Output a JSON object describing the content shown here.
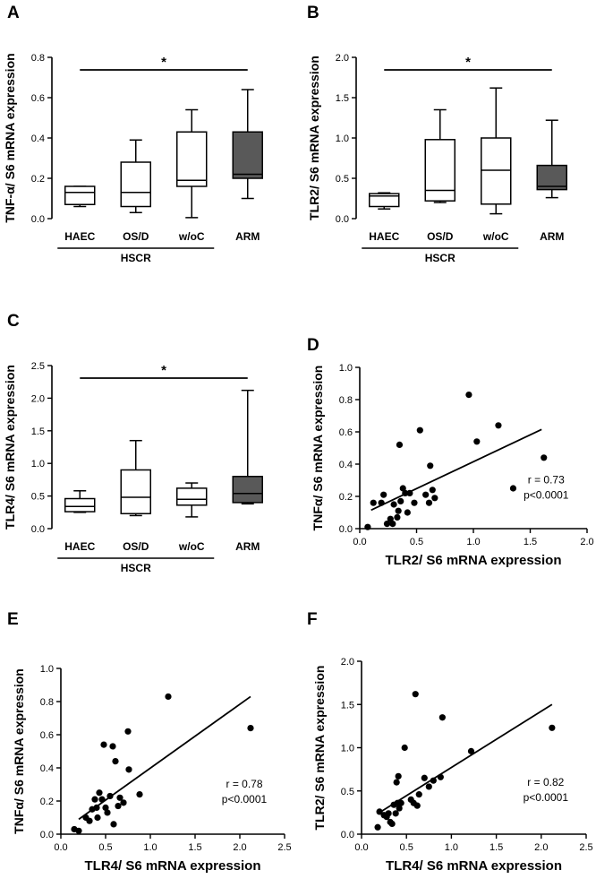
{
  "chart_data": [
    {
      "panel": "A",
      "type": "boxplot",
      "ylabel": "TNF-α/ S6 mRNA expression",
      "ylim": [
        0,
        0.8
      ],
      "yticks": [
        "0.0",
        "0.2",
        "0.4",
        "0.6",
        "0.8"
      ],
      "categories": [
        "HAEC",
        "OS/D",
        "w/oC",
        "ARM"
      ],
      "group_label": "HSCR",
      "significance": "*",
      "boxes": [
        {
          "min": 0.06,
          "q1": 0.07,
          "median": 0.13,
          "q3": 0.16,
          "max": 0.16,
          "fill": "#ffffff"
        },
        {
          "min": 0.03,
          "q1": 0.06,
          "median": 0.13,
          "q3": 0.28,
          "max": 0.39,
          "fill": "#ffffff"
        },
        {
          "min": 0.005,
          "q1": 0.16,
          "median": 0.19,
          "q3": 0.43,
          "max": 0.54,
          "fill": "#ffffff"
        },
        {
          "min": 0.1,
          "q1": 0.2,
          "median": 0.22,
          "q3": 0.43,
          "max": 0.64,
          "fill": "#595959"
        }
      ]
    },
    {
      "panel": "B",
      "type": "boxplot",
      "ylabel": "TLR2/ S6 mRNA expression",
      "ylim": [
        0,
        2.0
      ],
      "yticks": [
        "0.0",
        "0.5",
        "1.0",
        "1.5",
        "2.0"
      ],
      "categories": [
        "HAEC",
        "OS/D",
        "w/oC",
        "ARM"
      ],
      "group_label": "HSCR",
      "significance": "*",
      "boxes": [
        {
          "min": 0.12,
          "q1": 0.15,
          "median": 0.28,
          "q3": 0.31,
          "max": 0.32,
          "fill": "#ffffff"
        },
        {
          "min": 0.2,
          "q1": 0.22,
          "median": 0.35,
          "q3": 0.98,
          "max": 1.35,
          "fill": "#ffffff"
        },
        {
          "min": 0.06,
          "q1": 0.18,
          "median": 0.6,
          "q3": 1.0,
          "max": 1.62,
          "fill": "#ffffff"
        },
        {
          "min": 0.26,
          "q1": 0.36,
          "median": 0.4,
          "q3": 0.66,
          "max": 1.22,
          "fill": "#595959"
        }
      ]
    },
    {
      "panel": "C",
      "type": "boxplot",
      "ylabel": "TLR4/ S6 mRNA expression",
      "ylim": [
        0,
        2.5
      ],
      "yticks": [
        "0.0",
        "0.5",
        "1.0",
        "1.5",
        "2.0",
        "2.5"
      ],
      "categories": [
        "HAEC",
        "OS/D",
        "w/oC",
        "ARM"
      ],
      "group_label": "HSCR",
      "significance": "*",
      "boxes": [
        {
          "min": 0.25,
          "q1": 0.26,
          "median": 0.34,
          "q3": 0.46,
          "max": 0.58,
          "fill": "#ffffff"
        },
        {
          "min": 0.2,
          "q1": 0.23,
          "median": 0.48,
          "q3": 0.9,
          "max": 1.35,
          "fill": "#ffffff"
        },
        {
          "min": 0.18,
          "q1": 0.36,
          "median": 0.45,
          "q3": 0.62,
          "max": 0.7,
          "fill": "#ffffff"
        },
        {
          "min": 0.38,
          "q1": 0.4,
          "median": 0.54,
          "q3": 0.8,
          "max": 2.12,
          "fill": "#595959"
        }
      ]
    },
    {
      "panel": "D",
      "type": "scatter",
      "xlabel": "TLR2/ S6 mRNA expression",
      "ylabel": "TNFα/ S6 mRNA expression",
      "xlim": [
        0,
        2.0
      ],
      "ylim": [
        0,
        1.0
      ],
      "xticks": [
        "0.0",
        "0.5",
        "1.0",
        "1.5",
        "2.0"
      ],
      "yticks": [
        "0.0",
        "0.2",
        "0.4",
        "0.6",
        "0.8",
        "1.0"
      ],
      "r_text": "r = 0.73",
      "p_text": "p<0.0001",
      "fit": [
        [
          0.1,
          0.115
        ],
        [
          1.6,
          0.615
        ]
      ],
      "points": [
        [
          0.07,
          0.01
        ],
        [
          0.12,
          0.16
        ],
        [
          0.19,
          0.16
        ],
        [
          0.21,
          0.21
        ],
        [
          0.24,
          0.03
        ],
        [
          0.27,
          0.06
        ],
        [
          0.29,
          0.03
        ],
        [
          0.3,
          0.15
        ],
        [
          0.33,
          0.07
        ],
        [
          0.34,
          0.11
        ],
        [
          0.35,
          0.52
        ],
        [
          0.36,
          0.17
        ],
        [
          0.38,
          0.25
        ],
        [
          0.4,
          0.22
        ],
        [
          0.42,
          0.1
        ],
        [
          0.44,
          0.22
        ],
        [
          0.48,
          0.16
        ],
        [
          0.53,
          0.61
        ],
        [
          0.58,
          0.21
        ],
        [
          0.61,
          0.16
        ],
        [
          0.62,
          0.39
        ],
        [
          0.64,
          0.24
        ],
        [
          0.66,
          0.19
        ],
        [
          0.96,
          0.83
        ],
        [
          1.03,
          0.54
        ],
        [
          1.22,
          0.64
        ],
        [
          1.35,
          0.25
        ],
        [
          1.62,
          0.44
        ]
      ]
    },
    {
      "panel": "E",
      "type": "scatter",
      "xlabel": "TLR4/ S6 mRNA expression",
      "ylabel": "TNFα/ S6 mRNA expression",
      "xlim": [
        0,
        2.5
      ],
      "ylim": [
        0,
        1.0
      ],
      "xticks": [
        "0.0",
        "0.5",
        "1.0",
        "1.5",
        "2.0",
        "2.5"
      ],
      "yticks": [
        "0.0",
        "0.2",
        "0.4",
        "0.6",
        "0.8",
        "1.0"
      ],
      "r_text": "r = 0.78",
      "p_text": "p<0.0001",
      "fit": [
        [
          0.2,
          0.09
        ],
        [
          2.12,
          0.83
        ]
      ],
      "points": [
        [
          0.15,
          0.03
        ],
        [
          0.2,
          0.02
        ],
        [
          0.28,
          0.1
        ],
        [
          0.32,
          0.08
        ],
        [
          0.35,
          0.15
        ],
        [
          0.38,
          0.21
        ],
        [
          0.4,
          0.16
        ],
        [
          0.41,
          0.1
        ],
        [
          0.43,
          0.25
        ],
        [
          0.46,
          0.21
        ],
        [
          0.48,
          0.54
        ],
        [
          0.5,
          0.16
        ],
        [
          0.52,
          0.13
        ],
        [
          0.55,
          0.23
        ],
        [
          0.58,
          0.53
        ],
        [
          0.59,
          0.06
        ],
        [
          0.61,
          0.44
        ],
        [
          0.64,
          0.17
        ],
        [
          0.66,
          0.22
        ],
        [
          0.7,
          0.19
        ],
        [
          0.75,
          0.62
        ],
        [
          0.76,
          0.39
        ],
        [
          0.88,
          0.24
        ],
        [
          1.2,
          0.83
        ],
        [
          2.12,
          0.64
        ]
      ]
    },
    {
      "panel": "F",
      "type": "scatter",
      "xlabel": "TLR4/ S6 mRNA expression",
      "ylabel": "TLR2/ S6 mRNA expression",
      "xlim": [
        0,
        2.5
      ],
      "ylim": [
        0,
        2.0
      ],
      "xticks": [
        "0.0",
        "0.5",
        "1.0",
        "1.5",
        "2.0",
        "2.5"
      ],
      "yticks": [
        "0.0",
        "0.5",
        "1.0",
        "1.5",
        "2.0"
      ],
      "r_text": "r = 0.82",
      "p_text": "p<0.0001",
      "fit": [
        [
          0.2,
          0.25
        ],
        [
          2.12,
          1.5
        ]
      ],
      "points": [
        [
          0.18,
          0.08
        ],
        [
          0.2,
          0.26
        ],
        [
          0.25,
          0.22
        ],
        [
          0.28,
          0.2
        ],
        [
          0.3,
          0.24
        ],
        [
          0.32,
          0.14
        ],
        [
          0.34,
          0.12
        ],
        [
          0.36,
          0.34
        ],
        [
          0.38,
          0.24
        ],
        [
          0.39,
          0.6
        ],
        [
          0.4,
          0.36
        ],
        [
          0.41,
          0.67
        ],
        [
          0.42,
          0.3
        ],
        [
          0.44,
          0.36
        ],
        [
          0.48,
          1.0
        ],
        [
          0.55,
          0.4
        ],
        [
          0.58,
          0.36
        ],
        [
          0.6,
          1.62
        ],
        [
          0.62,
          0.33
        ],
        [
          0.64,
          0.46
        ],
        [
          0.7,
          0.65
        ],
        [
          0.75,
          0.55
        ],
        [
          0.8,
          0.62
        ],
        [
          0.88,
          0.66
        ],
        [
          0.9,
          1.35
        ],
        [
          1.22,
          0.96
        ],
        [
          2.12,
          1.23
        ]
      ]
    }
  ]
}
